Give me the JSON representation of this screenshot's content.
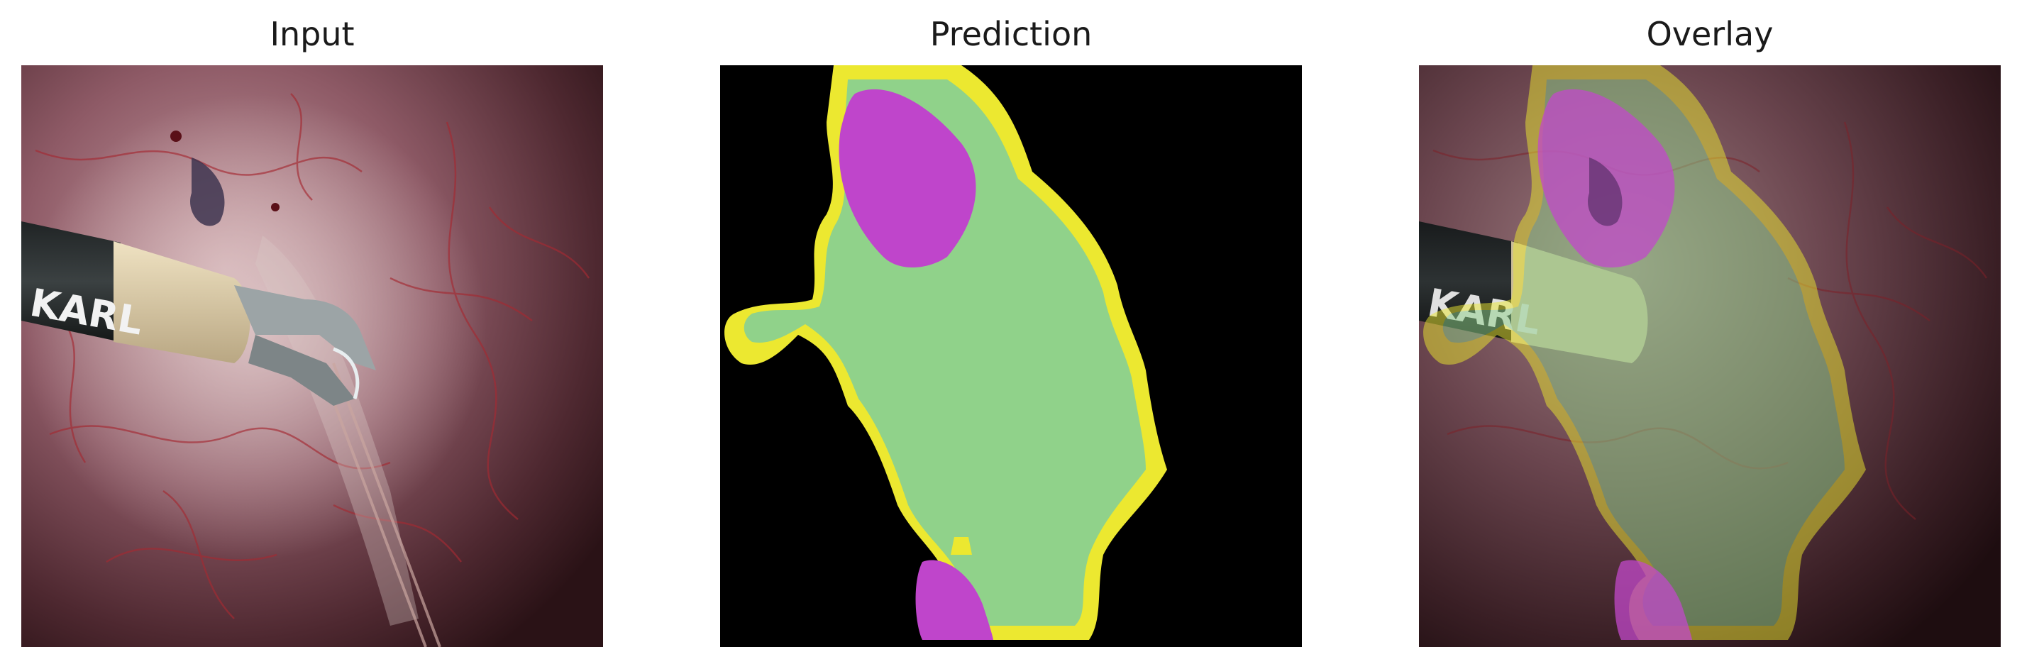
{
  "panels": [
    {
      "title": "Input"
    },
    {
      "title": "Prediction"
    },
    {
      "title": "Overlay"
    }
  ],
  "instrument_text": "KARL",
  "colors": {
    "background_tissue": "#7c4c58",
    "prediction_background": "#000000",
    "class_green": "#90d28a",
    "class_yellow": "#ece830",
    "class_magenta": "#bf45cb"
  }
}
